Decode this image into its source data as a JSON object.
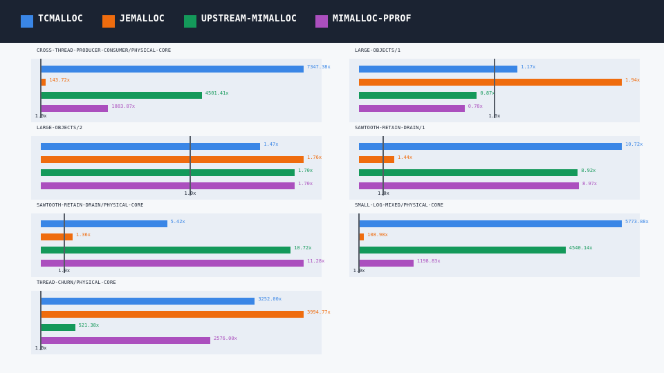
{
  "colors": {
    "header_bg": "#1b2332",
    "page_bg": "#f6f8fa",
    "panel_bg": "#e9eef5",
    "reference_line": "#555c66"
  },
  "legend": [
    {
      "label": "tcmalloc",
      "color": "#3a86e6"
    },
    {
      "label": "jemalloc",
      "color": "#ef6c0e"
    },
    {
      "label": "upstream-mimalloc",
      "color": "#14995a"
    },
    {
      "label": "mimalloc-pprof",
      "color": "#ab4fbe"
    }
  ],
  "chart_data": [
    {
      "type": "bar",
      "orientation": "horizontal",
      "title": "cross-thread-producer-consumer/physical-core",
      "reference": {
        "value": 1.0,
        "label": "1.0x"
      },
      "series": [
        {
          "name": "tcmalloc",
          "value": 7347.38,
          "label": "7347.38x"
        },
        {
          "name": "jemalloc",
          "value": 143.72,
          "label": "143.72x"
        },
        {
          "name": "upstream-mimalloc",
          "value": 4501.41,
          "label": "4501.41x"
        },
        {
          "name": "mimalloc-pprof",
          "value": 1883.87,
          "label": "1883.87x"
        }
      ]
    },
    {
      "type": "bar",
      "orientation": "horizontal",
      "title": "large-objects/1",
      "reference": {
        "value": 1.0,
        "label": "1.0x"
      },
      "series": [
        {
          "name": "tcmalloc",
          "value": 1.17,
          "label": "1.17x"
        },
        {
          "name": "jemalloc",
          "value": 1.94,
          "label": "1.94x"
        },
        {
          "name": "upstream-mimalloc",
          "value": 0.87,
          "label": "0.87x"
        },
        {
          "name": "mimalloc-pprof",
          "value": 0.78,
          "label": "0.78x"
        }
      ]
    },
    {
      "type": "bar",
      "orientation": "horizontal",
      "title": "large-objects/2",
      "reference": {
        "value": 1.0,
        "label": "1.0x"
      },
      "series": [
        {
          "name": "tcmalloc",
          "value": 1.47,
          "label": "1.47x"
        },
        {
          "name": "jemalloc",
          "value": 1.76,
          "label": "1.76x"
        },
        {
          "name": "upstream-mimalloc",
          "value": 1.7,
          "label": "1.70x"
        },
        {
          "name": "mimalloc-pprof",
          "value": 1.7,
          "label": "1.70x"
        }
      ]
    },
    {
      "type": "bar",
      "orientation": "horizontal",
      "title": "sawtooth-retain-drain/1",
      "reference": {
        "value": 1.0,
        "label": "1.0x"
      },
      "series": [
        {
          "name": "tcmalloc",
          "value": 10.72,
          "label": "10.72x"
        },
        {
          "name": "jemalloc",
          "value": 1.44,
          "label": "1.44x"
        },
        {
          "name": "upstream-mimalloc",
          "value": 8.92,
          "label": "8.92x"
        },
        {
          "name": "mimalloc-pprof",
          "value": 8.97,
          "label": "8.97x"
        }
      ]
    },
    {
      "type": "bar",
      "orientation": "horizontal",
      "title": "sawtooth-retain-drain/physical-core",
      "reference": {
        "value": 1.0,
        "label": "1.0x"
      },
      "series": [
        {
          "name": "tcmalloc",
          "value": 5.42,
          "label": "5.42x"
        },
        {
          "name": "jemalloc",
          "value": 1.36,
          "label": "1.36x"
        },
        {
          "name": "upstream-mimalloc",
          "value": 10.72,
          "label": "10.72x"
        },
        {
          "name": "mimalloc-pprof",
          "value": 11.28,
          "label": "11.28x"
        }
      ]
    },
    {
      "type": "bar",
      "orientation": "horizontal",
      "title": "small-log-mixed/physical-core",
      "reference": {
        "value": 1.0,
        "label": "1.0x"
      },
      "series": [
        {
          "name": "tcmalloc",
          "value": 5773.88,
          "label": "5773.88x"
        },
        {
          "name": "jemalloc",
          "value": 108.98,
          "label": "108.98x"
        },
        {
          "name": "upstream-mimalloc",
          "value": 4540.14,
          "label": "4540.14x"
        },
        {
          "name": "mimalloc-pprof",
          "value": 1198.83,
          "label": "1198.83x"
        }
      ]
    },
    {
      "type": "bar",
      "orientation": "horizontal",
      "title": "thread-churn/physical-core",
      "reference": {
        "value": 1.0,
        "label": "1.0x"
      },
      "series": [
        {
          "name": "tcmalloc",
          "value": 3252.0,
          "label": "3252.00x"
        },
        {
          "name": "jemalloc",
          "value": 3994.77,
          "label": "3994.77x"
        },
        {
          "name": "upstream-mimalloc",
          "value": 521.38,
          "label": "521.38x"
        },
        {
          "name": "mimalloc-pprof",
          "value": 2576.0,
          "label": "2576.00x"
        }
      ]
    }
  ]
}
